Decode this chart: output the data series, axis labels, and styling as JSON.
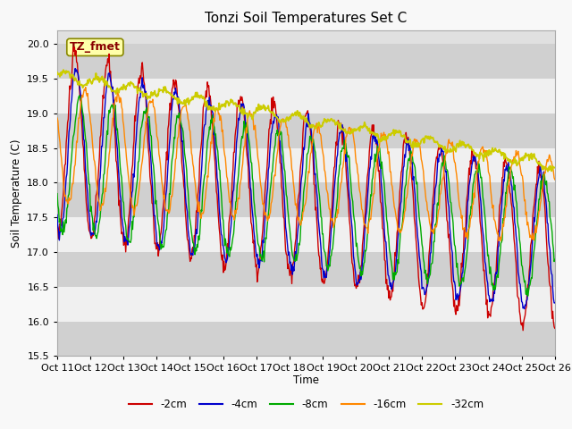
{
  "title": "Tonzi Soil Temperatures Set C",
  "ylabel": "Soil Temperature (C)",
  "xlabel": "Time",
  "annotation": "TZ_fmet",
  "ylim": [
    15.5,
    20.2
  ],
  "bg_color": "#e0e0e0",
  "white_band": "#f0f0f0",
  "gray_band": "#d0d0d0",
  "x_tick_labels": [
    "Oct 11",
    "Oct 12",
    "Oct 13",
    "Oct 14",
    "Oct 15",
    "Oct 16",
    "Oct 17",
    "Oct 18",
    "Oct 19",
    "Oct 20",
    "Oct 21",
    "Oct 22",
    "Oct 23",
    "Oct 24",
    "Oct 25",
    "Oct 26"
  ],
  "legend_labels": [
    "-2cm",
    "-4cm",
    "-8cm",
    "-16cm",
    "-32cm"
  ],
  "legend_colors": [
    "#cc0000",
    "#0000cc",
    "#00aa00",
    "#ff8800",
    "#cccc00"
  ]
}
